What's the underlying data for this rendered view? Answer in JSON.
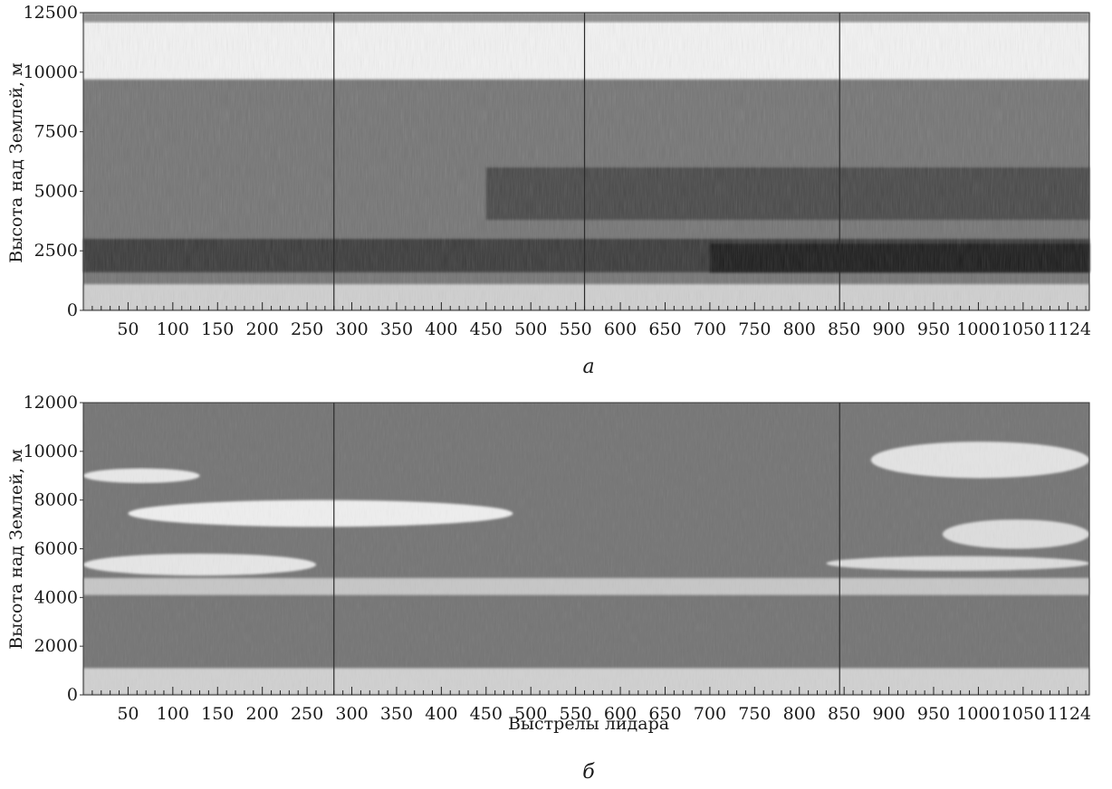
{
  "chart_data": [
    {
      "type": "heatmap",
      "panel_label": "а",
      "xlabel": "",
      "ylabel": "Высота над Землей, м",
      "xlim": [
        0,
        1124
      ],
      "ylim": [
        0,
        12500
      ],
      "x_ticks": [
        "50",
        "100",
        "150",
        "200",
        "250",
        "300",
        "350",
        "400",
        "450",
        "500",
        "550",
        "600",
        "650",
        "700",
        "750",
        "800",
        "850",
        "900",
        "950",
        "1000",
        "1050",
        "1124"
      ],
      "y_ticks": [
        "0",
        "2500",
        "5000",
        "7500",
        "10000",
        "12500"
      ],
      "colormap": "grayscale",
      "background_color": "#757575",
      "regions": [
        {
          "name": "top-white-band",
          "x": [
            0,
            1124
          ],
          "y": [
            9700,
            12500
          ],
          "color": "#f2f2f2"
        },
        {
          "name": "upper-noise-strip",
          "x": [
            0,
            1124
          ],
          "y": [
            12100,
            12500
          ],
          "color": "#8c8c8c"
        },
        {
          "name": "dark-layer-low",
          "x": [
            0,
            1124
          ],
          "y": [
            1600,
            3000
          ],
          "color": "#3a3a3a"
        },
        {
          "name": "darkest-layer-right",
          "x": [
            700,
            1124
          ],
          "y": [
            1600,
            2800
          ],
          "color": "#1a1a1a"
        },
        {
          "name": "speckle-layer-mid",
          "x": [
            450,
            1124
          ],
          "y": [
            3800,
            6000
          ],
          "color": "#4a4a4a"
        },
        {
          "name": "surface-light-band",
          "x": [
            0,
            1124
          ],
          "y": [
            0,
            1100
          ],
          "color": "#cfcfcf"
        }
      ],
      "vertical_lines": [
        280,
        560,
        845
      ]
    },
    {
      "type": "heatmap",
      "panel_label": "б",
      "xlabel": "Выстрелы лидара",
      "ylabel": "Высота над Землей, м",
      "xlim": [
        0,
        1124
      ],
      "ylim": [
        0,
        12000
      ],
      "x_ticks": [
        "50",
        "100",
        "150",
        "200",
        "250",
        "300",
        "350",
        "400",
        "450",
        "500",
        "550",
        "600",
        "650",
        "700",
        "750",
        "800",
        "850",
        "900",
        "950",
        "1000",
        "1050",
        "1124"
      ],
      "y_ticks": [
        "0",
        "2000",
        "4000",
        "6000",
        "8000",
        "10000",
        "12000"
      ],
      "colormap": "grayscale",
      "background_color": "#757575",
      "regions": [
        {
          "name": "surface-light-band",
          "x": [
            0,
            1124
          ],
          "y": [
            0,
            1100
          ],
          "color": "#d0d0d0"
        },
        {
          "name": "light-layer-4500",
          "x": [
            0,
            1124
          ],
          "y": [
            4100,
            4800
          ],
          "color": "#c6c6c6"
        },
        {
          "name": "cloud-5200",
          "x": [
            0,
            260
          ],
          "y": [
            4900,
            5800
          ],
          "color": "#e6e6e6"
        },
        {
          "name": "cloud-7600",
          "x": [
            50,
            480
          ],
          "y": [
            6900,
            8000
          ],
          "color": "#eeeeee"
        },
        {
          "name": "cloud-8900",
          "x": [
            0,
            130
          ],
          "y": [
            8700,
            9300
          ],
          "color": "#e8e8e8"
        },
        {
          "name": "cloud-9700",
          "x": [
            880,
            1124
          ],
          "y": [
            8900,
            10400
          ],
          "color": "#e3e3e3"
        },
        {
          "name": "cloud-6500-right",
          "x": [
            960,
            1124
          ],
          "y": [
            6000,
            7200
          ],
          "color": "#dddddd"
        },
        {
          "name": "cloud-5500-right",
          "x": [
            830,
            1124
          ],
          "y": [
            5100,
            5700
          ],
          "color": "#dcdcdc"
        }
      ],
      "vertical_lines": [
        280,
        845
      ]
    }
  ]
}
